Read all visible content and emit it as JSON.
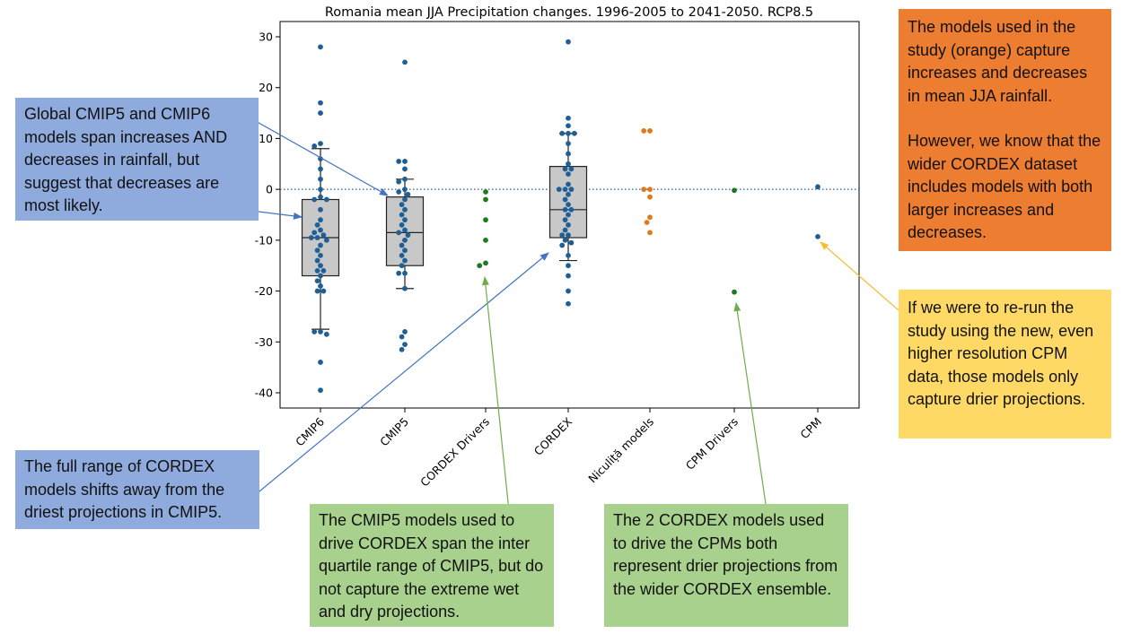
{
  "chart_data": {
    "type": "box-swarm",
    "title": "Romania mean JJA Precipitation changes. 1996-2005 to 2041-2050. RCP8.5",
    "xlabel": "",
    "ylabel": "",
    "ylim": [
      -43,
      33
    ],
    "yticks": [
      30,
      20,
      10,
      0,
      -10,
      -20,
      -30,
      -40
    ],
    "zero_line": true,
    "categories": [
      "CMIP6",
      "CMIP5",
      "CORDEX Drivers",
      "CORDEX",
      "Niculiță models",
      "CPM Drivers",
      "CPM"
    ],
    "colors": {
      "blue": "#1f5f96",
      "green": "#1e7a1e",
      "orange": "#e0781c",
      "box_fill": "#c8c8c8"
    },
    "series": [
      {
        "category": "CMIP6",
        "color": "blue",
        "box": {
          "whisker_low": -27.5,
          "q1": -17,
          "median": -9.5,
          "q3": -2,
          "whisker_high": 8
        },
        "values": [
          28,
          17,
          15,
          9,
          8.5,
          6,
          4,
          2,
          0,
          -1.5,
          -2,
          -2,
          -4,
          -6,
          -7,
          -8,
          -8.5,
          -9,
          -9.5,
          -9.5,
          -10,
          -11,
          -12,
          -13,
          -14,
          -15,
          -16,
          -16,
          -17,
          -18,
          -19,
          -20,
          -20,
          -28,
          -28,
          -28.5,
          -34,
          -39.5
        ]
      },
      {
        "category": "CMIP5",
        "color": "blue",
        "box": {
          "whisker_low": -19.5,
          "q1": -15,
          "median": -8.5,
          "q3": -1.5,
          "whisker_high": 2
        },
        "values": [
          25,
          5.5,
          5.5,
          4,
          2,
          1.5,
          0,
          -0.5,
          -1,
          -2,
          -3,
          -4,
          -5,
          -6,
          -7,
          -8,
          -8.5,
          -9,
          -10,
          -11,
          -12,
          -13,
          -14,
          -15,
          -16.5,
          -16.5,
          -19.5,
          -28,
          -29,
          -30.5,
          -31.5
        ]
      },
      {
        "category": "CORDEX Drivers",
        "color": "green",
        "values": [
          -0.5,
          -2,
          -6,
          -10,
          -14.5,
          -15
        ]
      },
      {
        "category": "CORDEX",
        "color": "blue",
        "box": {
          "whisker_low": -14,
          "q1": -9.5,
          "median": -4,
          "q3": 4.5,
          "whisker_high": 11
        },
        "values": [
          29,
          14,
          12.5,
          11,
          11,
          11,
          9,
          7,
          5,
          4,
          4,
          3,
          1,
          0,
          0,
          0,
          -1,
          -2,
          -3,
          -4,
          -4,
          -5,
          -6,
          -7,
          -8,
          -9,
          -9,
          -10,
          -10.5,
          -11,
          -13,
          -15,
          -17,
          -20,
          -22.5
        ]
      },
      {
        "category": "Niculiță models",
        "color": "orange",
        "values": [
          11.5,
          11.5,
          0,
          0,
          -1.5,
          -5.5,
          -6.5,
          -8.5
        ]
      },
      {
        "category": "CPM Drivers",
        "color": "green",
        "values": [
          -0.2,
          -20.2
        ]
      },
      {
        "category": "CPM",
        "color": "blue",
        "values": [
          0.5,
          -9.3
        ]
      }
    ]
  },
  "callouts": {
    "blue1": "Global CMIP5 and CMIP6 models span increases AND decreases in rainfall, but suggest that decreases are most likely.",
    "blue2": "The full range of CORDEX models shifts away from the driest projections in CMIP5.",
    "green1": "The CMIP5 models used to drive CORDEX span the inter quartile range of CMIP5, but do not capture the extreme wet and dry projections.",
    "green2": "The 2 CORDEX models used to drive the CPMs both represent drier projections from the wider CORDEX ensemble.",
    "orange_p1": "The models used in the study (orange) capture increases and decreases in mean JJA rainfall.",
    "orange_p2": "However, we know that the wider CORDEX dataset includes models with both larger increases and decreases.",
    "yellow": "If we were to re-run the study using the new, even higher resolution CPM data, those models only capture drier projections."
  },
  "callout_colors": {
    "blue": "#8faadc",
    "green": "#a9d18e",
    "orange": "#ed7d31",
    "yellow": "#ffd966"
  }
}
